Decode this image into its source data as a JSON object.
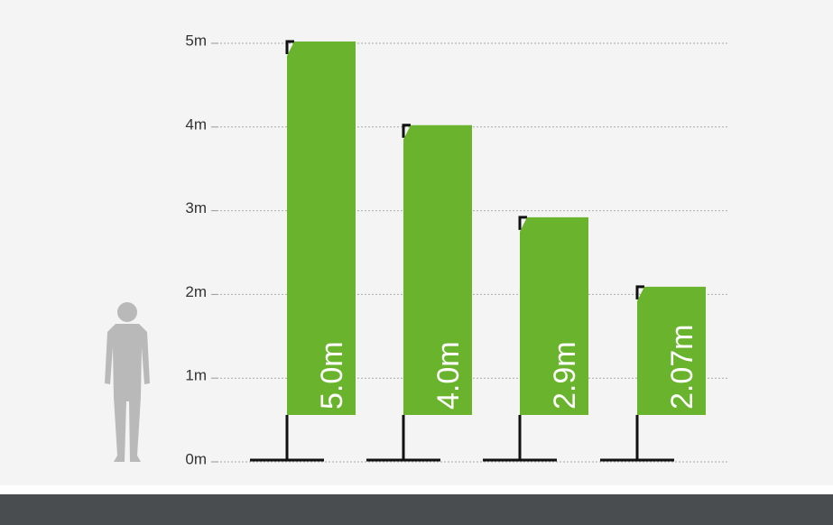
{
  "chart_data": {
    "type": "bar",
    "values": [
      5.0,
      4.0,
      2.9,
      2.07
    ],
    "value_labels": [
      "5.0m",
      "4.0m",
      "2.9m",
      "2.07m"
    ],
    "color": "#6ab42d",
    "ylim": [
      0,
      5
    ],
    "yticks": [
      {
        "value": 0,
        "label": "0m"
      },
      {
        "value": 1,
        "label": "1m"
      },
      {
        "value": 2,
        "label": "2m"
      },
      {
        "value": 3,
        "label": "3m"
      },
      {
        "value": 4,
        "label": "4m"
      },
      {
        "value": 5,
        "label": "5m"
      }
    ],
    "grid": true
  }
}
